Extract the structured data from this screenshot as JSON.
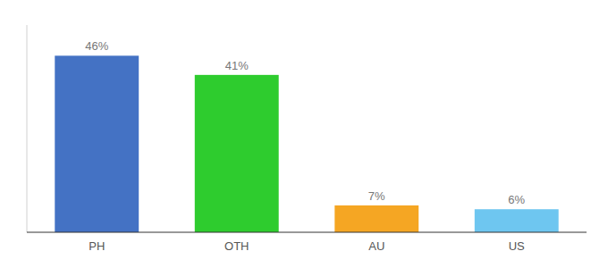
{
  "chart_data": {
    "type": "bar",
    "categories": [
      "PH",
      "OTH",
      "AU",
      "US"
    ],
    "values": [
      46,
      41,
      7,
      6
    ],
    "value_labels": [
      "46%",
      "41%",
      "7%",
      "6%"
    ],
    "colors": [
      "#4472c4",
      "#2ecc2e",
      "#f5a623",
      "#6ec6f0"
    ],
    "ylim": [
      0,
      54
    ],
    "grid": false,
    "data_labels": true,
    "tick_labels": "x"
  }
}
